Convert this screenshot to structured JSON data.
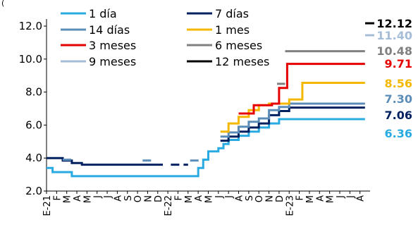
{
  "chart_data": {
    "type": "line",
    "title": "",
    "xlabel": "",
    "ylabel": "",
    "ylim": [
      2.0,
      12.0
    ],
    "yticks": [
      "2.0",
      "4.0",
      "6.0",
      "8.0",
      "10.0",
      "12.0"
    ],
    "y_label_prefix": "(",
    "grid": false,
    "legend": "top-left",
    "x_tick_labels": [
      "E-21",
      "F",
      "M",
      "A",
      "M",
      "J",
      "J",
      "A",
      "S",
      "O",
      "N",
      "D",
      "E-22",
      "F",
      "M",
      "A",
      "M",
      "J",
      "J",
      "A",
      "S",
      "O",
      "N",
      "D",
      "E-23",
      "F",
      "M",
      "A",
      "M",
      "J",
      "J",
      "A"
    ],
    "series": [
      {
        "name": "1 día",
        "color": "#29ABE2",
        "style": "solid",
        "end_label": "6.36",
        "points": [
          [
            0,
            3.4
          ],
          [
            0.6,
            3.4
          ],
          [
            0.6,
            3.15
          ],
          [
            2.5,
            3.15
          ],
          [
            2.5,
            2.9
          ],
          [
            15,
            2.9
          ],
          [
            15,
            3.4
          ],
          [
            15.5,
            3.4
          ],
          [
            15.5,
            3.9
          ],
          [
            16,
            3.9
          ],
          [
            16,
            4.4
          ],
          [
            17,
            4.4
          ],
          [
            17,
            4.6
          ],
          [
            17.5,
            4.6
          ],
          [
            17.5,
            4.85
          ],
          [
            18,
            4.85
          ],
          [
            18,
            5.1
          ],
          [
            19,
            5.1
          ],
          [
            19,
            5.35
          ],
          [
            20,
            5.35
          ],
          [
            20,
            5.6
          ],
          [
            21,
            5.6
          ],
          [
            21,
            5.85
          ],
          [
            22,
            5.85
          ],
          [
            22,
            6.1
          ],
          [
            23,
            6.1
          ],
          [
            23,
            6.36
          ],
          [
            31.5,
            6.36
          ]
        ]
      },
      {
        "name": "7 días",
        "color": "#002060",
        "style": "solid",
        "end_label": "7.06",
        "points": [
          [
            0,
            4.0
          ],
          [
            1.6,
            4.0
          ],
          [
            1.6,
            3.85
          ],
          [
            2.5,
            3.85
          ],
          [
            2.5,
            3.7
          ],
          [
            3.5,
            3.7
          ],
          [
            3.5,
            3.6
          ],
          [
            11.5,
            3.6
          ]
        ]
      },
      {
        "name": "7 días",
        "color": "#002060",
        "style": "dashed",
        "points": [
          [
            12.3,
            3.6
          ],
          [
            14,
            3.6
          ]
        ]
      },
      {
        "name": "7 días",
        "color": "#002060",
        "style": "solid",
        "points": [
          [
            17.2,
            5.05
          ],
          [
            18,
            5.05
          ],
          [
            18,
            5.3
          ],
          [
            19,
            5.3
          ],
          [
            19,
            5.6
          ],
          [
            20,
            5.6
          ],
          [
            20,
            5.85
          ],
          [
            21,
            5.85
          ],
          [
            21,
            6.1
          ],
          [
            22,
            6.1
          ],
          [
            22,
            6.6
          ],
          [
            23,
            6.6
          ],
          [
            23,
            6.85
          ],
          [
            24,
            6.85
          ],
          [
            24,
            7.06
          ],
          [
            31.5,
            7.06
          ]
        ]
      },
      {
        "name": "14 días",
        "color": "#5B8DB8",
        "style": "dashed",
        "points": [
          [
            1.6,
            3.9
          ],
          [
            2.8,
            3.9
          ]
        ]
      },
      {
        "name": "14 días",
        "color": "#5B8DB8",
        "style": "dashed",
        "points": [
          [
            9.5,
            3.85
          ],
          [
            10.5,
            3.85
          ]
        ]
      },
      {
        "name": "14 días",
        "color": "#5B8DB8",
        "style": "dashed",
        "points": [
          [
            14.2,
            3.85
          ],
          [
            15.2,
            3.85
          ]
        ]
      },
      {
        "name": "14 días",
        "color": "#5B8DB8",
        "style": "solid",
        "end_label": "7.30",
        "points": [
          [
            17.2,
            5.3
          ],
          [
            18,
            5.3
          ],
          [
            18,
            5.55
          ],
          [
            19,
            5.55
          ],
          [
            19,
            5.9
          ],
          [
            20,
            5.9
          ],
          [
            20,
            6.2
          ],
          [
            21,
            6.2
          ],
          [
            21,
            6.4
          ],
          [
            22,
            6.4
          ],
          [
            22,
            6.9
          ],
          [
            23,
            6.9
          ],
          [
            23,
            7.1
          ],
          [
            24,
            7.1
          ],
          [
            24,
            7.3
          ],
          [
            31.5,
            7.3
          ]
        ]
      },
      {
        "name": "1 mes",
        "color": "#F5B800",
        "style": "solid",
        "end_label": "8.56",
        "points": [
          [
            17.2,
            5.6
          ],
          [
            18,
            5.6
          ],
          [
            18,
            6.1
          ],
          [
            19,
            6.1
          ],
          [
            19,
            6.5
          ],
          [
            20,
            6.5
          ],
          [
            20,
            6.9
          ],
          [
            21,
            6.9
          ],
          [
            21,
            7.2
          ],
          [
            22,
            7.2
          ],
          [
            22,
            7.3
          ],
          [
            24,
            7.3
          ],
          [
            24,
            7.55
          ],
          [
            25.3,
            7.55
          ],
          [
            25.3,
            8.56
          ],
          [
            31.5,
            8.56
          ]
        ]
      },
      {
        "name": "3 meses",
        "color": "#E60000",
        "style": "solid",
        "end_label": "9.71",
        "points": [
          [
            19,
            6.7
          ],
          [
            20.5,
            6.7
          ],
          [
            20.5,
            7.2
          ],
          [
            22.3,
            7.2
          ],
          [
            22.3,
            7.3
          ],
          [
            23,
            7.3
          ],
          [
            23,
            8.25
          ],
          [
            23.8,
            8.25
          ],
          [
            23.8,
            9.71
          ],
          [
            31.5,
            9.71
          ]
        ]
      },
      {
        "name": "6 meses",
        "color": "#808080",
        "style": "dashed",
        "points": [
          [
            22.8,
            8.5
          ],
          [
            23.6,
            8.5
          ]
        ]
      },
      {
        "name": "6 meses",
        "color": "#808080",
        "style": "solid",
        "end_label": "10.48",
        "points": [
          [
            23.6,
            10.48
          ],
          [
            31.5,
            10.48
          ]
        ]
      },
      {
        "name": "9 meses",
        "color": "#A6BDD7",
        "style": "solid",
        "end_label": "11.40",
        "points": []
      },
      {
        "name": "12 meses",
        "color": "#000000",
        "style": "solid",
        "end_label": "12.12",
        "points": []
      }
    ]
  }
}
